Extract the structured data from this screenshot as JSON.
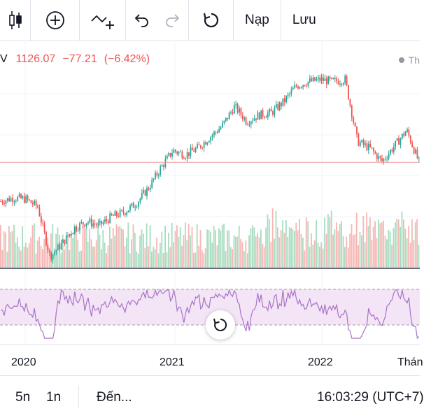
{
  "toolbar": {
    "items": [
      {
        "name": "candles-icon"
      },
      {
        "name": "add-indicator-icon"
      },
      {
        "name": "compare-icon"
      },
      {
        "name": "undo-icon"
      },
      {
        "name": "redo-icon"
      },
      {
        "name": "reset-icon"
      }
    ],
    "load_label": "Nạp",
    "save_label": "Lưu"
  },
  "legend": {
    "symbol_suffix": "V",
    "price": "1126.07",
    "change": "−77.21",
    "change_pct": "(−6.42%)",
    "right_label": "Th",
    "down_color": "#ef5350",
    "up_color": "#26a69a"
  },
  "chart_data": {
    "type": "candlestick",
    "x_axis_labels": [
      "2020",
      "2021",
      "2022",
      "Thán"
    ],
    "reference_price": 1126.07,
    "close_series_approx": [
      {
        "x": "2019-11",
        "close": 950
      },
      {
        "x": "2019-12",
        "close": 965
      },
      {
        "x": "2020-01",
        "close": 960
      },
      {
        "x": "2020-02",
        "close": 925
      },
      {
        "x": "2020-03",
        "close": 700
      },
      {
        "x": "2020-04",
        "close": 760
      },
      {
        "x": "2020-05",
        "close": 830
      },
      {
        "x": "2020-06",
        "close": 860
      },
      {
        "x": "2020-07",
        "close": 840
      },
      {
        "x": "2020-08",
        "close": 880
      },
      {
        "x": "2020-09",
        "close": 900
      },
      {
        "x": "2020-10",
        "close": 940
      },
      {
        "x": "2020-11",
        "close": 1010
      },
      {
        "x": "2020-12",
        "close": 1100
      },
      {
        "x": "2021-01",
        "close": 1180
      },
      {
        "x": "2021-02",
        "close": 1160
      },
      {
        "x": "2021-03",
        "close": 1190
      },
      {
        "x": "2021-04",
        "close": 1240
      },
      {
        "x": "2021-05",
        "close": 1290
      },
      {
        "x": "2021-06",
        "close": 1380
      },
      {
        "x": "2021-07",
        "close": 1310
      },
      {
        "x": "2021-08",
        "close": 1340
      },
      {
        "x": "2021-09",
        "close": 1350
      },
      {
        "x": "2021-10",
        "close": 1400
      },
      {
        "x": "2021-11",
        "close": 1470
      },
      {
        "x": "2021-12",
        "close": 1490
      },
      {
        "x": "2022-01",
        "close": 1500
      },
      {
        "x": "2022-02",
        "close": 1490
      },
      {
        "x": "2022-03",
        "close": 1500
      },
      {
        "x": "2022-04",
        "close": 1220
      },
      {
        "x": "2022-05",
        "close": 1190
      },
      {
        "x": "2022-06",
        "close": 1130
      },
      {
        "x": "2022-07",
        "close": 1200
      },
      {
        "x": "2022-08",
        "close": 1270
      },
      {
        "x": "2022-09",
        "close": 1126
      }
    ],
    "rsi_bands": [
      70,
      30
    ],
    "grid": true
  },
  "timeaxis": {
    "labels": [
      "2020",
      "2021",
      "2022",
      "Thán"
    ]
  },
  "bottombar": {
    "range_5y": "5n",
    "range_1y": "1n",
    "goto": "Đến...",
    "clock": "16:03:29 (UTC+7)"
  }
}
